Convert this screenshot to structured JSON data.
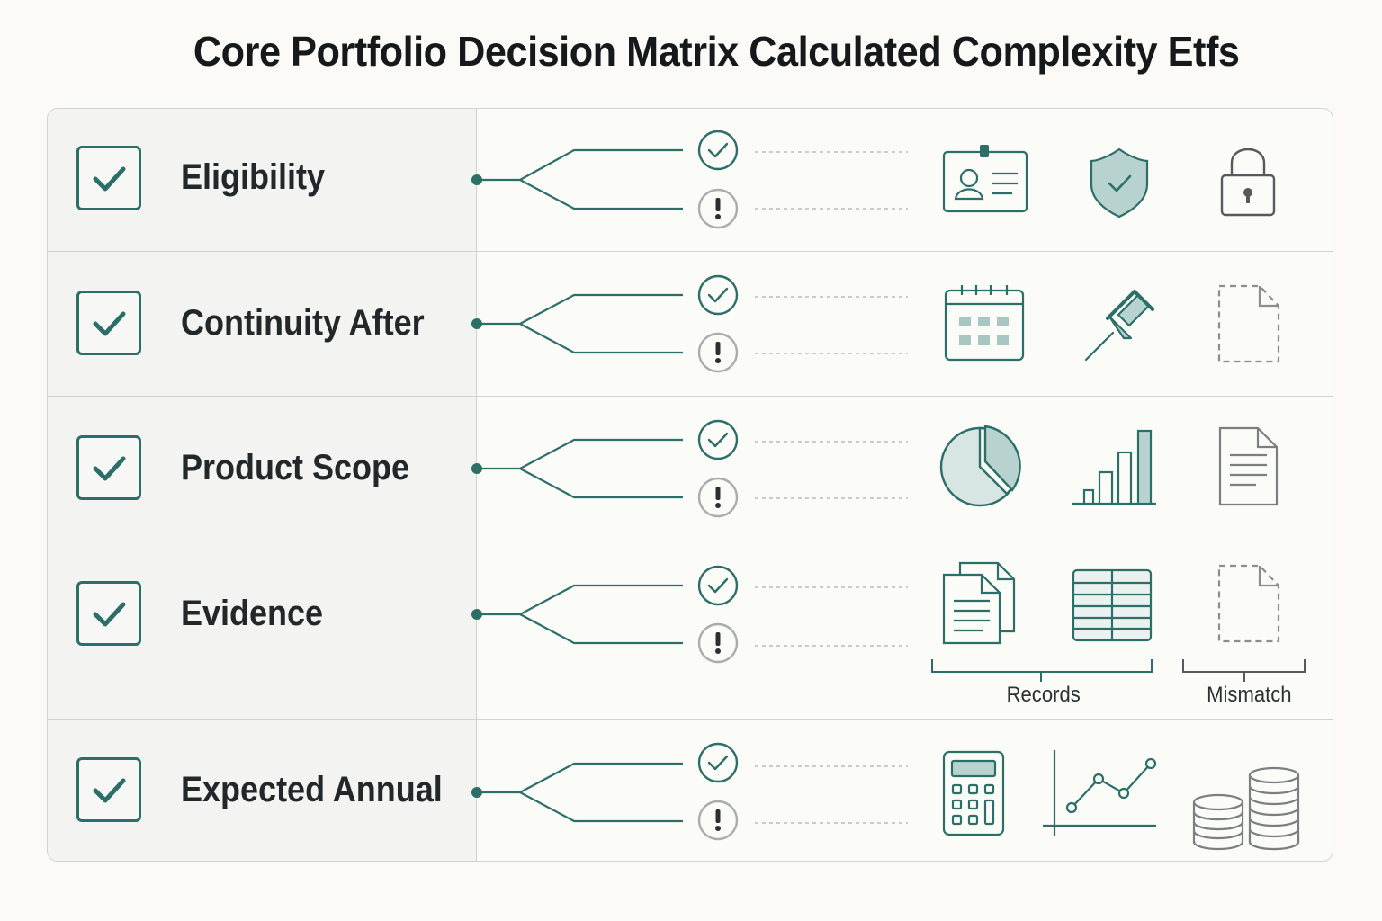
{
  "title": "Core Portfolio Decision Matrix Calculated Complexity Etfs",
  "colors": {
    "accent": "#2c6e68",
    "accent_fill": "#b8d3cf",
    "neutral_icon": "#7c7f80",
    "warning_ring": "#a9adad",
    "grid_line": "#cfd3d2",
    "left_cell_bg": "#f3f4f2"
  },
  "rows": [
    {
      "label": "Eligibility",
      "checked": true,
      "outcomes": [
        "check-circle-icon",
        "exclamation-circle-icon"
      ],
      "icons": [
        "id-badge-icon",
        "shield-check-icon",
        "padlock-icon"
      ]
    },
    {
      "label": "Continuity After",
      "checked": true,
      "outcomes": [
        "check-circle-icon",
        "exclamation-circle-icon"
      ],
      "icons": [
        "calendar-icon",
        "pushpin-icon",
        "dashed-document-icon"
      ]
    },
    {
      "label": "Product Scope",
      "checked": true,
      "outcomes": [
        "check-circle-icon",
        "exclamation-circle-icon"
      ],
      "icons": [
        "pie-chart-icon",
        "bar-chart-icon",
        "document-lines-icon"
      ]
    },
    {
      "label": "Evidence",
      "checked": true,
      "outcomes": [
        "check-circle-icon",
        "exclamation-circle-icon"
      ],
      "icons": [
        "stacked-documents-icon",
        "table-icon",
        "dashed-document-icon"
      ],
      "groups": [
        {
          "label": "Records"
        },
        {
          "label": "Mismatch"
        }
      ]
    },
    {
      "label": "Expected Annual",
      "checked": true,
      "outcomes": [
        "check-circle-icon",
        "exclamation-circle-icon"
      ],
      "icons": [
        "calculator-icon",
        "line-chart-icon",
        "coin-stacks-icon"
      ]
    }
  ]
}
